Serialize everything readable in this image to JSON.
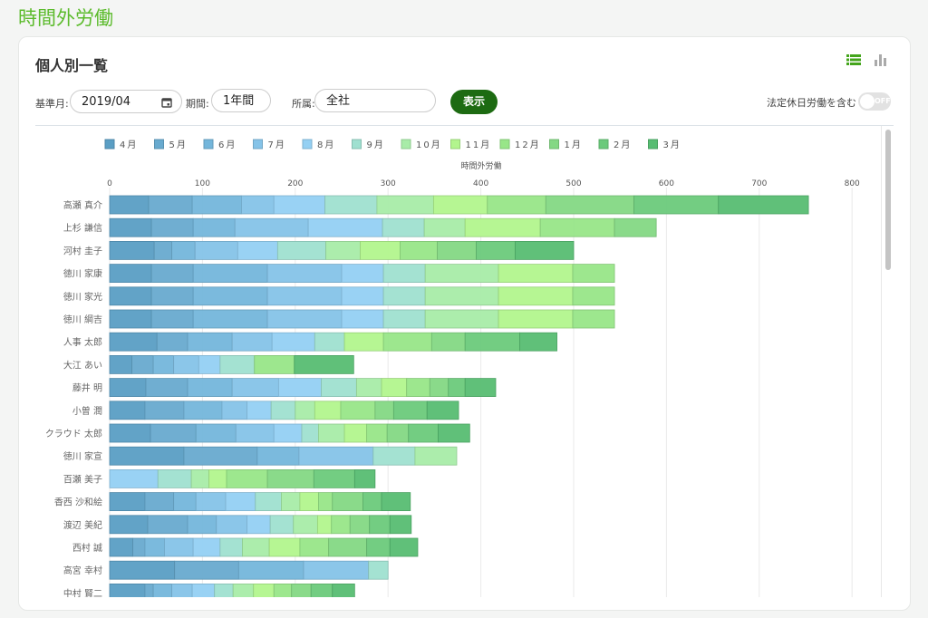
{
  "page_title": "時間外労働",
  "card": {
    "title": "個人別一覧",
    "view_icons": [
      "list-icon",
      "bar-chart-icon"
    ],
    "filters": {
      "base_month_label": "基準月:",
      "base_month_value": "2019/04",
      "period_label": "期間:",
      "period_value": "1年間",
      "dept_label": "所属:",
      "dept_value": "全社",
      "show_button": "表示",
      "holiday_label": "法定休日労働を含む",
      "holiday_toggle": "OFF"
    }
  },
  "chart_data": {
    "type": "bar",
    "orientation": "horizontal",
    "stacked": true,
    "xlabel": "時間外労働",
    "xlim": [
      0,
      800
    ],
    "xticks": [
      "0",
      "100",
      "200",
      "300",
      "400",
      "500",
      "600",
      "700",
      "800"
    ],
    "grid": true,
    "legend_position": "top",
    "series_names": [
      "4月",
      "5月",
      "6月",
      "7月",
      "8月",
      "9月",
      "10月",
      "11月",
      "12月",
      "1月",
      "2月",
      "3月"
    ],
    "colors": [
      "#5a9ec4",
      "#68aacf",
      "#74b6db",
      "#85c3e8",
      "#94d0f3",
      "#9fe0d0",
      "#a8eca8",
      "#b2f58d",
      "#98e688",
      "#84d884",
      "#6bca7b",
      "#57bd72"
    ],
    "categories": [
      "高瀬 真介",
      "上杉 謙信",
      "河村 圭子",
      "徳川 家康",
      "徳川 家光",
      "徳川 綱吉",
      "人事 太郎",
      "大江 あい",
      "藤井 明",
      "小曽 潤",
      "クラウド 太郎",
      "徳川 家宣",
      "百瀬 美子",
      "香西 沙和絵",
      "渡辺 美紀",
      "西村 誠",
      "高宮 幸村",
      "中村 賢二"
    ],
    "values": [
      [
        42,
        47,
        53,
        35,
        55,
        56,
        61,
        58,
        63,
        95,
        91,
        97
      ],
      [
        45,
        45,
        45,
        79,
        80,
        45,
        44,
        81,
        80,
        45,
        0,
        0
      ],
      [
        48,
        19,
        25,
        46,
        43,
        52,
        37,
        43,
        40,
        42,
        42,
        63
      ],
      [
        45,
        45,
        80,
        80,
        45,
        45,
        79,
        80,
        45,
        0,
        0,
        0
      ],
      [
        45,
        45,
        80,
        80,
        45,
        45,
        79,
        80,
        45,
        0,
        0,
        0
      ],
      [
        45,
        45,
        80,
        80,
        45,
        45,
        79,
        80,
        45,
        0,
        0,
        0
      ],
      [
        51,
        33,
        48,
        43,
        46,
        32,
        0,
        42,
        52,
        36,
        59,
        40
      ],
      [
        24,
        23,
        22,
        27,
        23,
        37,
        0,
        0,
        43,
        0,
        0,
        64
      ],
      [
        39,
        45,
        48,
        50,
        46,
        38,
        27,
        27,
        25,
        20,
        18,
        33
      ],
      [
        38,
        42,
        41,
        27,
        26,
        26,
        21,
        28,
        37,
        20,
        36,
        34
      ],
      [
        44,
        49,
        43,
        41,
        30,
        18,
        28,
        24,
        22,
        23,
        32,
        34
      ],
      [
        80,
        79,
        45,
        80,
        0,
        45,
        45,
        0,
        0,
        0,
        0,
        0
      ],
      [
        0,
        0,
        0,
        0,
        52,
        36,
        19,
        19,
        44,
        50,
        44,
        22
      ],
      [
        38,
        31,
        24,
        32,
        32,
        28,
        20,
        20,
        15,
        33,
        20,
        31
      ],
      [
        41,
        43,
        31,
        33,
        25,
        25,
        26,
        15,
        20,
        21,
        22,
        23
      ],
      [
        25,
        13,
        21,
        31,
        29,
        24,
        29,
        33,
        31,
        41,
        25,
        30
      ],
      [
        70,
        69,
        70,
        70,
        0,
        21,
        0,
        0,
        0,
        0,
        0,
        0
      ],
      [
        38,
        9,
        20,
        22,
        24,
        20,
        22,
        22,
        19,
        21,
        23,
        24
      ]
    ]
  }
}
